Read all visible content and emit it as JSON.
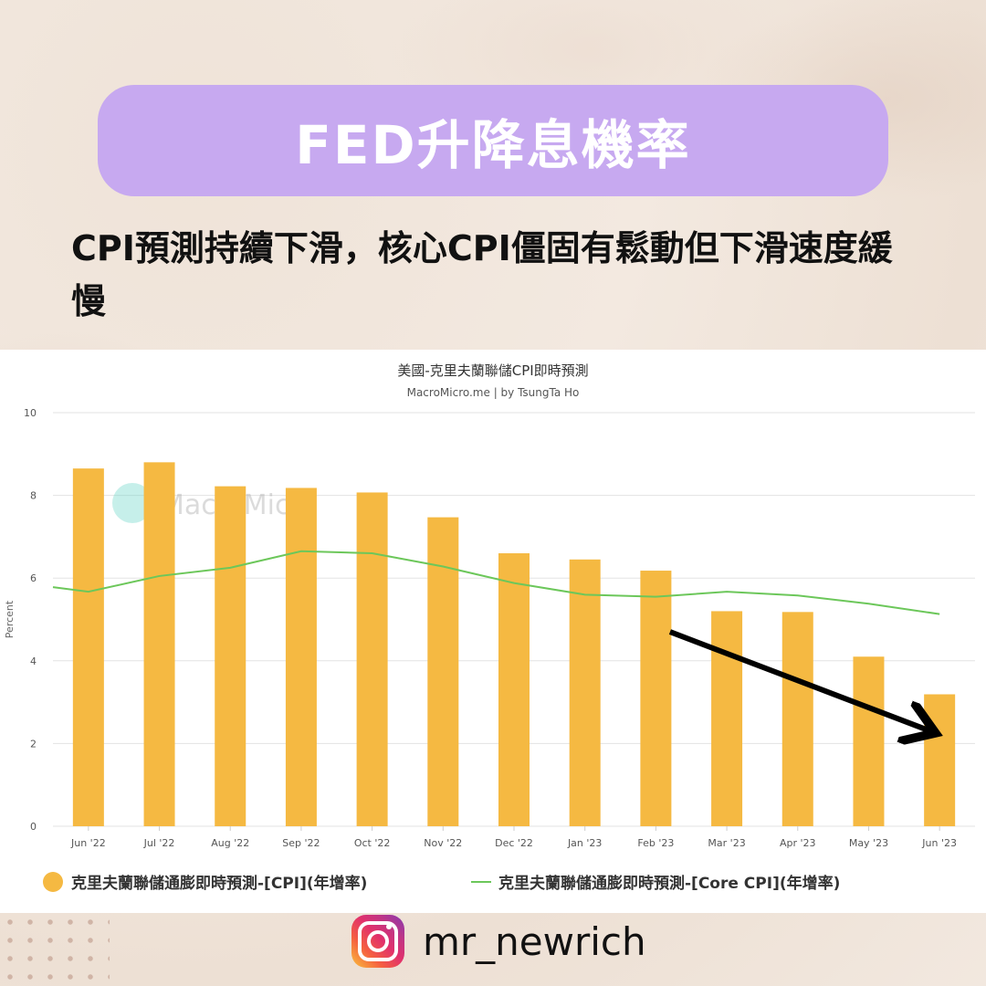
{
  "header": {
    "title": "FED升降息機率",
    "subtitle": "CPI預測持續下滑，核心CPI僵固有鬆動但下滑速度緩慢"
  },
  "footer": {
    "handle": "mr_newrich",
    "icon": "instagram-icon"
  },
  "chart_data": {
    "type": "bar",
    "title": "美國-克里夫蘭聯儲CPI即時預測",
    "subtitle": "MacroMicro.me | by TsungTa Ho",
    "watermark": "MacroMicro",
    "ylabel": "Percent",
    "ylim": [
      0,
      10
    ],
    "yticks": [
      0,
      2,
      4,
      6,
      8,
      10
    ],
    "grid": true,
    "legend_position": "bottom",
    "categories": [
      "Jun '22",
      "Jul '22",
      "Aug '22",
      "Sep '22",
      "Oct '22",
      "Nov '22",
      "Dec '22",
      "Jan '23",
      "Feb '23",
      "Mar '23",
      "Apr '23",
      "May '23",
      "Jun '23"
    ],
    "series": [
      {
        "name": "克里夫蘭聯儲通膨即時預測-[CPI](年增率)",
        "type": "bar",
        "color": "#f5b942",
        "values": [
          8.65,
          8.8,
          8.22,
          8.18,
          8.07,
          7.47,
          6.6,
          6.45,
          6.18,
          5.2,
          5.18,
          4.1,
          3.19
        ]
      },
      {
        "name": "克里夫蘭聯儲通膨即時預測-[Core CPI](年增率)",
        "type": "line",
        "color": "#6cc75a",
        "x": [
          -0.55,
          0,
          1,
          2,
          3,
          4,
          5,
          6,
          7,
          8,
          9,
          10,
          11,
          12
        ],
        "values": [
          5.78,
          5.67,
          6.05,
          6.25,
          6.65,
          6.6,
          6.28,
          5.88,
          5.6,
          5.55,
          5.67,
          5.58,
          5.38,
          5.13
        ]
      }
    ],
    "annotation": {
      "type": "arrow",
      "color": "#000000",
      "from": [
        8.2,
        4.7
      ],
      "to": [
        12,
        2.3
      ]
    }
  }
}
